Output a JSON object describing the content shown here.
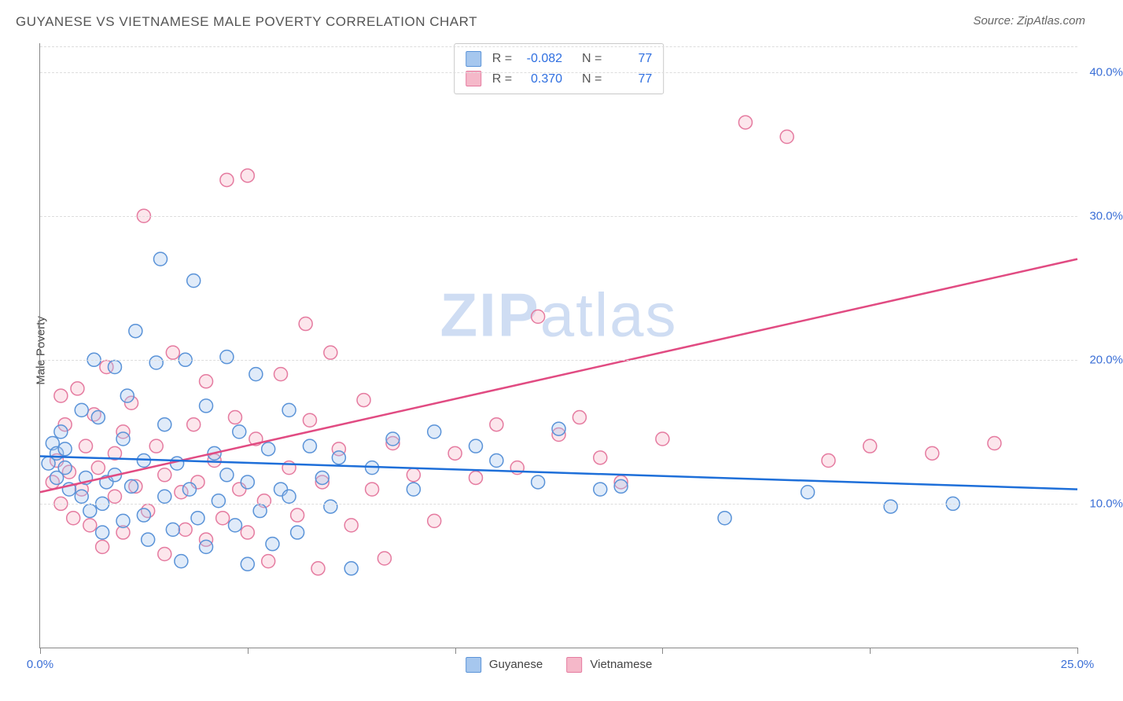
{
  "title": "GUYANESE VS VIETNAMESE MALE POVERTY CORRELATION CHART",
  "source": "Source: ZipAtlas.com",
  "y_axis_label": "Male Poverty",
  "watermark_zip": "ZIP",
  "watermark_atlas": "atlas",
  "chart": {
    "type": "scatter",
    "xlim": [
      0,
      25
    ],
    "ylim": [
      0,
      42
    ],
    "x_ticks": [
      0,
      5,
      10,
      15,
      20,
      25
    ],
    "x_tick_labels": {
      "0": "0.0%",
      "25": "25.0%"
    },
    "y_gridlines": [
      10,
      20,
      30,
      40
    ],
    "y_tick_labels": {
      "10": "10.0%",
      "20": "20.0%",
      "30": "30.0%",
      "40": "40.0%"
    },
    "grid_dash_color": "#dddddd",
    "axis_color": "#888888",
    "tick_label_color": "#3b6fd6",
    "marker_radius": 8.5,
    "marker_stroke_width": 1.5,
    "marker_fill_opacity": 0.35,
    "trend_line_width": 2.5
  },
  "series": {
    "guyanese": {
      "label": "Guyanese",
      "fill": "#a6c7ee",
      "stroke": "#5a93d8",
      "trend_color": "#1e6fd9",
      "R": "-0.082",
      "N": "77",
      "trend": {
        "x1": 0,
        "y1": 13.3,
        "x2": 25,
        "y2": 11.0
      },
      "points": [
        [
          0.2,
          12.8
        ],
        [
          0.3,
          14.2
        ],
        [
          0.4,
          13.5
        ],
        [
          0.4,
          11.8
        ],
        [
          0.5,
          15.0
        ],
        [
          0.6,
          12.5
        ],
        [
          0.6,
          13.8
        ],
        [
          0.7,
          11.0
        ],
        [
          1.0,
          10.5
        ],
        [
          1.0,
          16.5
        ],
        [
          1.1,
          11.8
        ],
        [
          1.2,
          9.5
        ],
        [
          1.3,
          20.0
        ],
        [
          1.4,
          16.0
        ],
        [
          1.5,
          8.0
        ],
        [
          1.5,
          10.0
        ],
        [
          1.6,
          11.5
        ],
        [
          1.8,
          19.5
        ],
        [
          1.8,
          12.0
        ],
        [
          2.0,
          14.5
        ],
        [
          2.0,
          8.8
        ],
        [
          2.1,
          17.5
        ],
        [
          2.2,
          11.2
        ],
        [
          2.3,
          22.0
        ],
        [
          2.5,
          9.2
        ],
        [
          2.5,
          13.0
        ],
        [
          2.6,
          7.5
        ],
        [
          2.8,
          19.8
        ],
        [
          2.9,
          27.0
        ],
        [
          3.0,
          10.5
        ],
        [
          3.0,
          15.5
        ],
        [
          3.2,
          8.2
        ],
        [
          3.3,
          12.8
        ],
        [
          3.4,
          6.0
        ],
        [
          3.5,
          20.0
        ],
        [
          3.6,
          11.0
        ],
        [
          3.7,
          25.5
        ],
        [
          3.8,
          9.0
        ],
        [
          4.0,
          16.8
        ],
        [
          4.0,
          7.0
        ],
        [
          4.2,
          13.5
        ],
        [
          4.3,
          10.2
        ],
        [
          4.5,
          20.2
        ],
        [
          4.5,
          12.0
        ],
        [
          4.7,
          8.5
        ],
        [
          4.8,
          15.0
        ],
        [
          5.0,
          11.5
        ],
        [
          5.0,
          5.8
        ],
        [
          5.2,
          19.0
        ],
        [
          5.3,
          9.5
        ],
        [
          5.5,
          13.8
        ],
        [
          5.6,
          7.2
        ],
        [
          5.8,
          11.0
        ],
        [
          6.0,
          16.5
        ],
        [
          6.0,
          10.5
        ],
        [
          6.2,
          8.0
        ],
        [
          6.5,
          14.0
        ],
        [
          6.8,
          11.8
        ],
        [
          7.0,
          9.8
        ],
        [
          7.2,
          13.2
        ],
        [
          7.5,
          5.5
        ],
        [
          8.0,
          12.5
        ],
        [
          8.5,
          14.5
        ],
        [
          9.0,
          11.0
        ],
        [
          9.5,
          15.0
        ],
        [
          10.5,
          14.0
        ],
        [
          11.0,
          13.0
        ],
        [
          12.0,
          11.5
        ],
        [
          12.5,
          15.2
        ],
        [
          13.5,
          11.0
        ],
        [
          14.0,
          11.2
        ],
        [
          16.5,
          9.0
        ],
        [
          18.5,
          10.8
        ],
        [
          20.5,
          9.8
        ],
        [
          22.0,
          10.0
        ]
      ]
    },
    "vietnamese": {
      "label": "Vietnamese",
      "fill": "#f5b8c9",
      "stroke": "#e57ba0",
      "trend_color": "#e14b82",
      "R": "0.370",
      "N": "77",
      "trend": {
        "x1": 0,
        "y1": 10.8,
        "x2": 25,
        "y2": 27.0
      },
      "points": [
        [
          0.3,
          11.5
        ],
        [
          0.4,
          13.0
        ],
        [
          0.5,
          17.5
        ],
        [
          0.5,
          10.0
        ],
        [
          0.6,
          15.5
        ],
        [
          0.7,
          12.2
        ],
        [
          0.8,
          9.0
        ],
        [
          0.9,
          18.0
        ],
        [
          1.0,
          11.0
        ],
        [
          1.1,
          14.0
        ],
        [
          1.2,
          8.5
        ],
        [
          1.3,
          16.2
        ],
        [
          1.4,
          12.5
        ],
        [
          1.5,
          7.0
        ],
        [
          1.6,
          19.5
        ],
        [
          1.8,
          10.5
        ],
        [
          1.8,
          13.5
        ],
        [
          2.0,
          15.0
        ],
        [
          2.0,
          8.0
        ],
        [
          2.2,
          17.0
        ],
        [
          2.3,
          11.2
        ],
        [
          2.5,
          30.0
        ],
        [
          2.6,
          9.5
        ],
        [
          2.8,
          14.0
        ],
        [
          3.0,
          12.0
        ],
        [
          3.0,
          6.5
        ],
        [
          3.2,
          20.5
        ],
        [
          3.4,
          10.8
        ],
        [
          3.5,
          8.2
        ],
        [
          3.7,
          15.5
        ],
        [
          3.8,
          11.5
        ],
        [
          4.0,
          7.5
        ],
        [
          4.0,
          18.5
        ],
        [
          4.2,
          13.0
        ],
        [
          4.4,
          9.0
        ],
        [
          4.5,
          32.5
        ],
        [
          4.7,
          16.0
        ],
        [
          4.8,
          11.0
        ],
        [
          5.0,
          32.8
        ],
        [
          5.0,
          8.0
        ],
        [
          5.2,
          14.5
        ],
        [
          5.4,
          10.2
        ],
        [
          5.5,
          6.0
        ],
        [
          5.8,
          19.0
        ],
        [
          6.0,
          12.5
        ],
        [
          6.2,
          9.2
        ],
        [
          6.4,
          22.5
        ],
        [
          6.5,
          15.8
        ],
        [
          6.7,
          5.5
        ],
        [
          6.8,
          11.5
        ],
        [
          7.0,
          20.5
        ],
        [
          7.2,
          13.8
        ],
        [
          7.5,
          8.5
        ],
        [
          7.8,
          17.2
        ],
        [
          8.0,
          11.0
        ],
        [
          8.3,
          6.2
        ],
        [
          8.5,
          14.2
        ],
        [
          9.0,
          12.0
        ],
        [
          9.5,
          8.8
        ],
        [
          10.0,
          13.5
        ],
        [
          10.5,
          11.8
        ],
        [
          11.0,
          15.5
        ],
        [
          11.5,
          12.5
        ],
        [
          12.0,
          23.0
        ],
        [
          12.5,
          14.8
        ],
        [
          13.0,
          16.0
        ],
        [
          13.5,
          13.2
        ],
        [
          14.0,
          11.5
        ],
        [
          15.0,
          14.5
        ],
        [
          17.0,
          36.5
        ],
        [
          18.0,
          35.5
        ],
        [
          19.0,
          13.0
        ],
        [
          20.0,
          14.0
        ],
        [
          21.5,
          13.5
        ],
        [
          23.0,
          14.2
        ]
      ]
    }
  },
  "legend_labels": {
    "R_eq": "R =",
    "N_eq": "N ="
  }
}
